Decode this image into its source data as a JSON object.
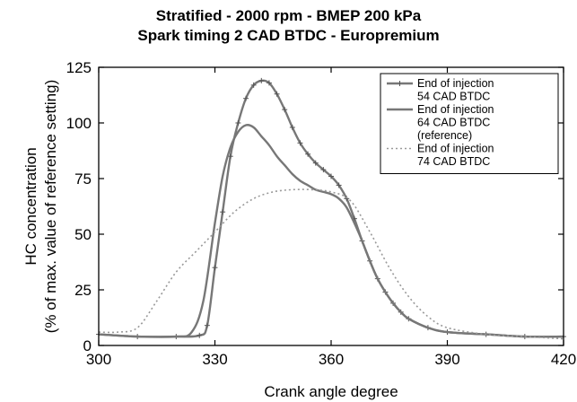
{
  "chart_data": {
    "type": "line",
    "title": "Stratified - 2000 rpm - BMEP 200 kPa",
    "subtitle": "Spark timing 2 CAD BTDC - Europremium",
    "xlabel": "Crank angle degree",
    "ylabel_line1": "HC concentration",
    "ylabel_line2": "(% of max. value of reference setting)",
    "xlim": [
      300,
      420
    ],
    "ylim": [
      0,
      125
    ],
    "xticks": [
      300,
      330,
      360,
      390,
      420
    ],
    "yticks": [
      0,
      25,
      50,
      75,
      100,
      125
    ],
    "grid": false,
    "legend_position": "top-right",
    "series": [
      {
        "name_lines": [
          "End of injection",
          "54 CAD BTDC"
        ],
        "style": "solid-with-markers",
        "color": "#777777",
        "x": [
          300,
          310,
          320,
          326,
          328,
          330,
          332,
          334,
          336,
          338,
          340,
          342,
          344,
          346,
          348,
          350,
          352,
          354,
          356,
          358,
          360,
          362,
          364,
          366,
          368,
          370,
          372,
          374,
          376,
          378,
          380,
          385,
          390,
          400,
          410,
          420
        ],
        "y": [
          5,
          4,
          4,
          4.5,
          9,
          35,
          60,
          85,
          100,
          111,
          117,
          119,
          118,
          113,
          106,
          98,
          91,
          86,
          82,
          79,
          76,
          72,
          66,
          57,
          47,
          38,
          30,
          24,
          19,
          15,
          12,
          8,
          6,
          5,
          4,
          4
        ]
      },
      {
        "name_lines": [
          "End of injection",
          "64 CAD BTDC",
          "(reference)"
        ],
        "style": "solid",
        "color": "#777777",
        "x": [
          300,
          310,
          320,
          324,
          327,
          330,
          332,
          334,
          336,
          338,
          340,
          342,
          344,
          346,
          348,
          350,
          352,
          354,
          356,
          358,
          360,
          362,
          364,
          366,
          368,
          370,
          372,
          374,
          376,
          378,
          380,
          385,
          390,
          400,
          410,
          420
        ],
        "y": [
          5,
          4,
          4,
          6,
          20,
          55,
          76,
          89,
          96,
          99,
          98,
          94,
          90,
          85,
          81,
          77,
          74,
          72,
          70,
          69,
          68,
          66,
          62,
          55,
          47,
          38,
          30,
          24,
          19,
          15,
          12,
          8,
          6,
          5,
          4,
          4
        ]
      },
      {
        "name_lines": [
          "End of injection",
          "74 CAD BTDC"
        ],
        "style": "dotted",
        "color": "#999999",
        "x": [
          300,
          305,
          310,
          315,
          320,
          325,
          330,
          335,
          340,
          345,
          350,
          355,
          360,
          365,
          370,
          375,
          380,
          385,
          390,
          400,
          410,
          420
        ],
        "y": [
          6,
          6,
          8,
          20,
          33,
          42,
          51,
          60,
          66,
          69,
          70,
          70,
          69,
          65,
          51,
          35,
          22,
          13,
          8,
          5,
          4,
          3
        ]
      }
    ]
  }
}
